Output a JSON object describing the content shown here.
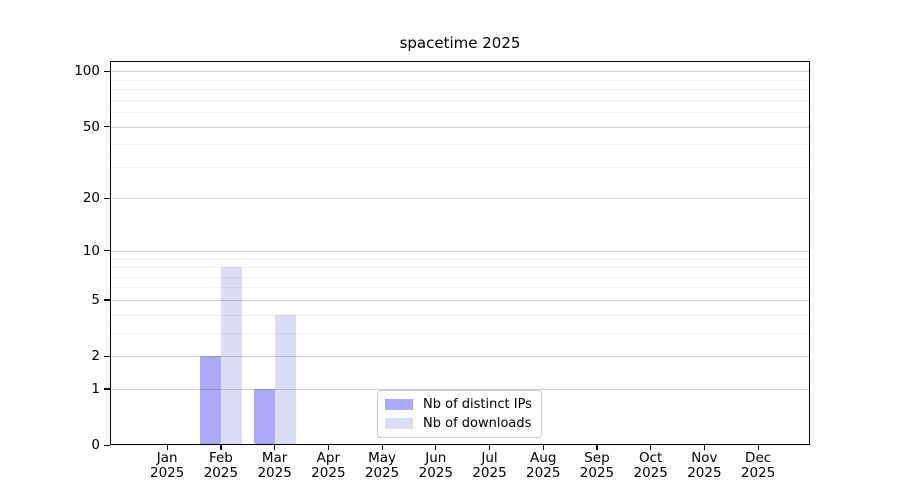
{
  "chart_data": {
    "type": "bar",
    "title": "spacetime 2025",
    "categories": [
      "Jan",
      "Feb",
      "Mar",
      "Apr",
      "May",
      "Jun",
      "Jul",
      "Aug",
      "Sep",
      "Oct",
      "Nov",
      "Dec"
    ],
    "category_year": "2025",
    "series": [
      {
        "name": "Nb of distinct IPs",
        "color": "#aaaaf8",
        "values": [
          0,
          2,
          1,
          0,
          0,
          0,
          0,
          0,
          0,
          0,
          0,
          0
        ]
      },
      {
        "name": "Nb of downloads",
        "color": "#dcdcf8",
        "values": [
          0,
          8,
          4,
          0,
          0,
          0,
          0,
          0,
          0,
          0,
          0,
          0
        ]
      }
    ],
    "y_axis": {
      "scale": "log1p",
      "range": [
        0,
        100
      ],
      "tick_values": [
        0,
        1,
        2,
        5,
        10,
        20,
        50,
        100
      ],
      "tick_labels": [
        "0",
        "1",
        "2",
        "5",
        "10",
        "20",
        "50",
        "100"
      ],
      "minor_gridline_values": [
        3,
        4,
        6,
        7,
        8,
        9,
        30,
        40,
        60,
        70,
        80,
        90
      ]
    },
    "legend": {
      "entries": [
        "Nb of distinct IPs",
        "Nb of downloads"
      ],
      "position": "bottom-center-inside"
    },
    "grid": true
  }
}
